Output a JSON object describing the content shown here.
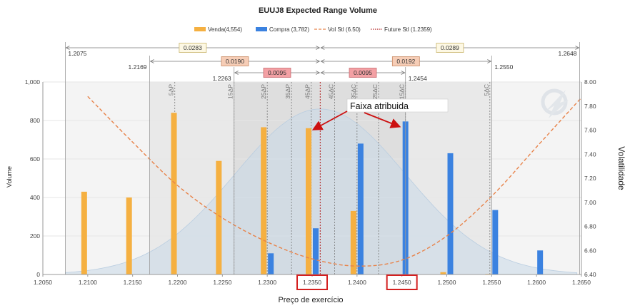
{
  "chart_data": {
    "type": "bar",
    "title": "EUUJ8 Expected Range Volume",
    "xlabel": "Preço de exercício",
    "ylabel": "Volume",
    "y2label": "Volatilidade",
    "xlim": [
      1.205,
      1.265
    ],
    "ylim": [
      0,
      1000
    ],
    "y2lim": [
      6.4,
      8.0
    ],
    "x_ticks": [
      "1.2050",
      "1.2100",
      "1.2150",
      "1.2200",
      "1.2250",
      "1.2300",
      "1.2350",
      "1.2400",
      "1.2450",
      "1.2500",
      "1.2550",
      "1.2600",
      "1.2650"
    ],
    "y_ticks": [
      "0",
      "200",
      "400",
      "600",
      "800",
      "1,000"
    ],
    "y2_ticks": [
      "6.40",
      "6.60",
      "6.80",
      "7.00",
      "7.20",
      "7.40",
      "7.60",
      "7.80",
      "8.00"
    ],
    "highlighted_ticks": [
      "1.2350",
      "1.2450"
    ],
    "legend": [
      {
        "label": "Venda(4,554)",
        "kind": "bar",
        "color": "#f5b041"
      },
      {
        "label": "Compra (3,782)",
        "kind": "bar",
        "color": "#3b82e0"
      },
      {
        "label": "Vol Stl (6.50)",
        "kind": "dash",
        "color": "#e8834a"
      },
      {
        "label": "Future Stl (1.2359)",
        "kind": "dot",
        "color": "#b22222"
      }
    ],
    "series": [
      {
        "name": "Venda",
        "color": "#f5b041",
        "points": [
          [
            1.21,
            430
          ],
          [
            1.215,
            400
          ],
          [
            1.22,
            840
          ],
          [
            1.225,
            590
          ],
          [
            1.23,
            765
          ],
          [
            1.235,
            760
          ],
          [
            1.24,
            330
          ],
          [
            1.25,
            12
          ],
          [
            1.255,
            3
          ]
        ]
      },
      {
        "name": "Compra",
        "color": "#3b82e0",
        "points": [
          [
            1.23,
            110
          ],
          [
            1.235,
            240
          ],
          [
            1.24,
            680
          ],
          [
            1.245,
            795
          ],
          [
            1.25,
            630
          ],
          [
            1.255,
            335
          ],
          [
            1.26,
            125
          ]
        ]
      }
    ],
    "vol_curve": [
      [
        1.21,
        7.88
      ],
      [
        1.215,
        7.5
      ],
      [
        1.22,
        7.14
      ],
      [
        1.225,
        6.87
      ],
      [
        1.23,
        6.67
      ],
      [
        1.235,
        6.53
      ],
      [
        1.24,
        6.47
      ],
      [
        1.245,
        6.52
      ],
      [
        1.25,
        6.72
      ],
      [
        1.255,
        7.05
      ],
      [
        1.26,
        7.46
      ],
      [
        1.265,
        7.87
      ]
    ],
    "future_stl": 1.2359,
    "delta_lines": [
      {
        "label": "5ΔP",
        "x": 1.2197
      },
      {
        "label": "15ΔP",
        "x": 1.2263
      },
      {
        "label": "25ΔP",
        "x": 1.23
      },
      {
        "label": "35ΔP",
        "x": 1.2327
      },
      {
        "label": "45ΔP",
        "x": 1.2349
      },
      {
        "label": "45ΔC",
        "x": 1.2375
      },
      {
        "label": "35ΔC",
        "x": 1.24
      },
      {
        "label": "25ΔC",
        "x": 1.2424
      },
      {
        "label": "15ΔC",
        "x": 1.2454
      },
      {
        "label": "5ΔC",
        "x": 1.2548
      }
    ],
    "ranges": [
      {
        "lo": 1.2075,
        "hi": 1.2648,
        "lo_label": "1.2075",
        "hi_label": "1.2648",
        "left_box": "0.0283",
        "right_box": "0.0289",
        "fill": "#fdf8e4",
        "stroke": "#c9b46a"
      },
      {
        "lo": 1.2169,
        "hi": 1.255,
        "lo_label": "1.2169",
        "hi_label": "1.2550",
        "left_box": "0.0190",
        "right_box": "0.0192",
        "fill": "#f6cdb6",
        "stroke": "#c98a64"
      },
      {
        "lo": 1.2263,
        "hi": 1.2454,
        "lo_label": "1.2263",
        "hi_label": "1.2454",
        "left_box": "0.0095",
        "right_box": "0.0095",
        "fill": "#f3a0a4",
        "stroke": "#c86c72"
      }
    ],
    "annotation": "Faixa atribuida"
  }
}
